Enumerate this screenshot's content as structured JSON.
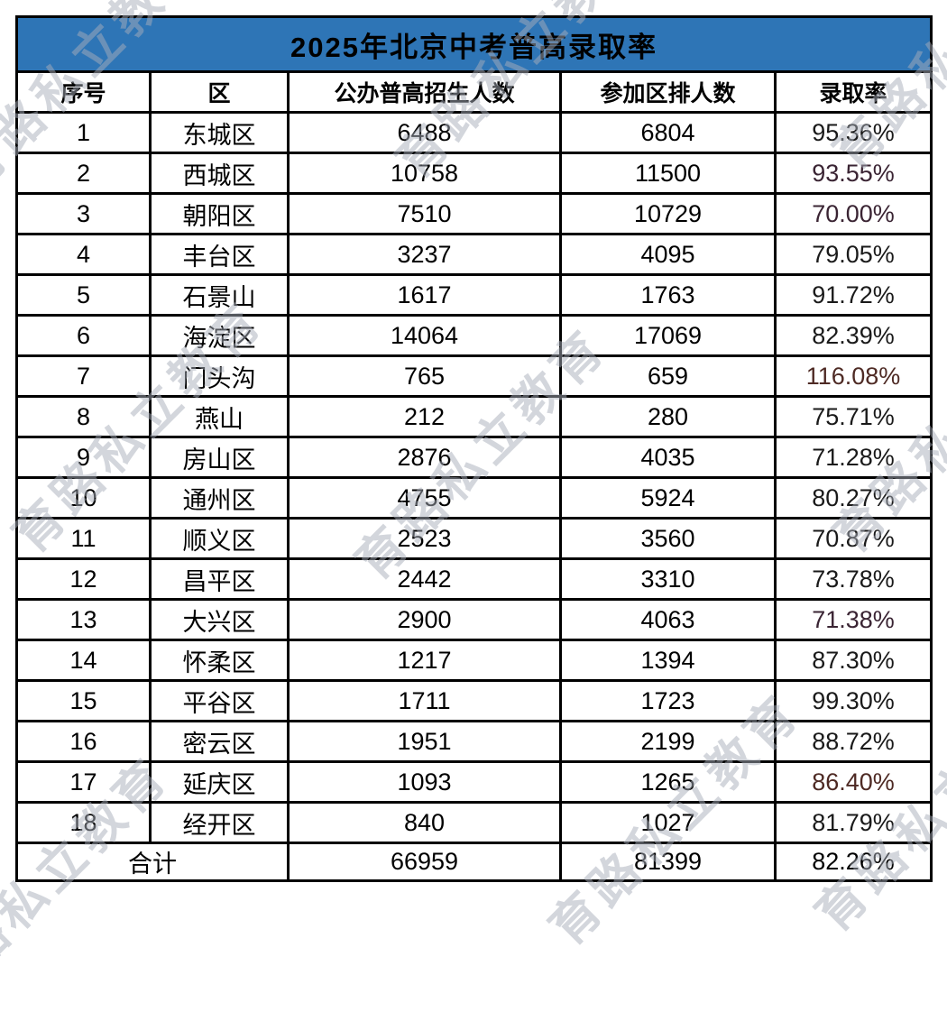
{
  "chart_data": {
    "type": "table",
    "title": "2025年北京中考普高录取率",
    "columns": [
      "序号",
      "区",
      "公办普高招生人数",
      "参加区排人数",
      "录取率"
    ],
    "rows": [
      {
        "no": "1",
        "district": "东城区",
        "enrolled": "6488",
        "participants": "6804",
        "rate": "95.36%",
        "rate_color": "#1a1a1a"
      },
      {
        "no": "2",
        "district": "西城区",
        "enrolled": "10758",
        "participants": "11500",
        "rate": "93.55%",
        "rate_color": "#3A2433"
      },
      {
        "no": "3",
        "district": "朝阳区",
        "enrolled": "7510",
        "participants": "10729",
        "rate": "70.00%",
        "rate_color": "#3A2433"
      },
      {
        "no": "4",
        "district": "丰台区",
        "enrolled": "3237",
        "participants": "4095",
        "rate": "79.05%",
        "rate_color": "#1a1a1a"
      },
      {
        "no": "5",
        "district": "石景山",
        "enrolled": "1617",
        "participants": "1763",
        "rate": "91.72%",
        "rate_color": "#1a1a1a"
      },
      {
        "no": "6",
        "district": "海淀区",
        "enrolled": "14064",
        "participants": "17069",
        "rate": "82.39%",
        "rate_color": "#1a1a1a"
      },
      {
        "no": "7",
        "district": "门头沟",
        "enrolled": "765",
        "participants": "659",
        "rate": "116.08%",
        "rate_color": "#4E2A24"
      },
      {
        "no": "8",
        "district": "燕山",
        "enrolled": "212",
        "participants": "280",
        "rate": "75.71%",
        "rate_color": "#1a1a1a"
      },
      {
        "no": "9",
        "district": "房山区",
        "enrolled": "2876",
        "participants": "4035",
        "rate": "71.28%",
        "rate_color": "#1a1a1a"
      },
      {
        "no": "10",
        "district": "通州区",
        "enrolled": "4755",
        "participants": "5924",
        "rate": "80.27%",
        "rate_color": "#1a1a1a"
      },
      {
        "no": "11",
        "district": "顺义区",
        "enrolled": "2523",
        "participants": "3560",
        "rate": "70.87%",
        "rate_color": "#1a1a1a"
      },
      {
        "no": "12",
        "district": "昌平区",
        "enrolled": "2442",
        "participants": "3310",
        "rate": "73.78%",
        "rate_color": "#1a1a1a"
      },
      {
        "no": "13",
        "district": "大兴区",
        "enrolled": "2900",
        "participants": "4063",
        "rate": "71.38%",
        "rate_color": "#3A2433"
      },
      {
        "no": "14",
        "district": "怀柔区",
        "enrolled": "1217",
        "participants": "1394",
        "rate": "87.30%",
        "rate_color": "#1a1a1a"
      },
      {
        "no": "15",
        "district": "平谷区",
        "enrolled": "1711",
        "participants": "1723",
        "rate": "99.30%",
        "rate_color": "#1a1a1a"
      },
      {
        "no": "16",
        "district": "密云区",
        "enrolled": "1951",
        "participants": "2199",
        "rate": "88.72%",
        "rate_color": "#1a1a1a"
      },
      {
        "no": "17",
        "district": "延庆区",
        "enrolled": "1093",
        "participants": "1265",
        "rate": "86.40%",
        "rate_color": "#4E2A24"
      },
      {
        "no": "18",
        "district": "经开区",
        "enrolled": "840",
        "participants": "1027",
        "rate": "81.79%",
        "rate_color": "#1a1a1a"
      }
    ],
    "total": {
      "label": "合计",
      "enrolled": "66959",
      "participants": "81399",
      "rate": "82.26%"
    }
  },
  "watermark": {
    "text": "育路私立教育"
  },
  "colors": {
    "title_bg": "#2E75B6",
    "title_text": "#FFFFFF",
    "border": "#000000",
    "rate_highlight_plum": "#3A2433",
    "rate_highlight_brown": "#4E2A24",
    "watermark": "rgba(168,173,186,0.5)"
  }
}
